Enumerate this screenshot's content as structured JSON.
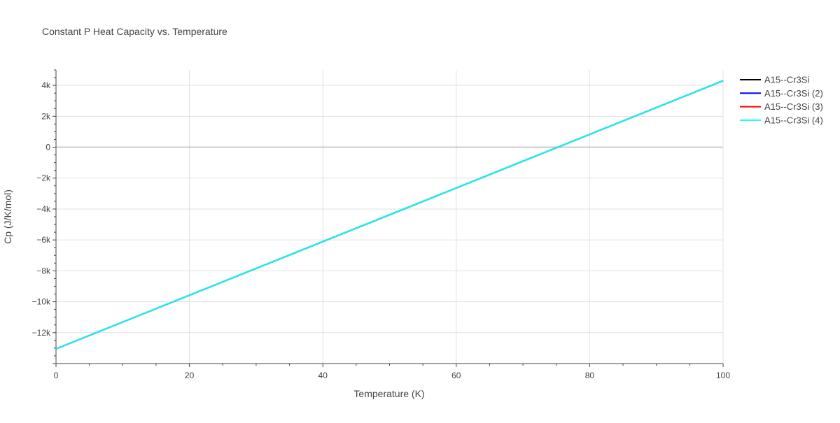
{
  "chart_data": {
    "type": "line",
    "title": "Constant P Heat Capacity vs. Temperature",
    "xlabel": "Temperature (K)",
    "ylabel": "Cp (J/K/mol)",
    "xlim": [
      0,
      100
    ],
    "ylim": [
      -14000,
      5000
    ],
    "x_ticks": [
      0,
      20,
      40,
      60,
      80,
      100
    ],
    "x_tick_labels": [
      "0",
      "20",
      "40",
      "60",
      "80",
      "100"
    ],
    "y_ticks": [
      -12000,
      -10000,
      -8000,
      -6000,
      -4000,
      -2000,
      0,
      2000,
      4000
    ],
    "y_tick_labels": [
      "−12k",
      "−10k",
      "−8k",
      "−6k",
      "−4k",
      "−2k",
      "0",
      "2k",
      "4k"
    ],
    "grid": true,
    "legend_position": "top-right",
    "series": [
      {
        "name": "A15--Cr3Si",
        "color": "#000000",
        "x": [
          0,
          100
        ],
        "values": [
          -13050,
          4300
        ]
      },
      {
        "name": "A15--Cr3Si (2)",
        "color": "#0000ff",
        "x": [
          0,
          100
        ],
        "values": [
          -13050,
          4300
        ]
      },
      {
        "name": "A15--Cr3Si (3)",
        "color": "#ff0000",
        "x": [
          0,
          100
        ],
        "values": [
          -13050,
          4300
        ]
      },
      {
        "name": "A15--Cr3Si (4)",
        "color": "#00ffff",
        "x": [
          0,
          100
        ],
        "values": [
          -13050,
          4300
        ]
      }
    ]
  }
}
